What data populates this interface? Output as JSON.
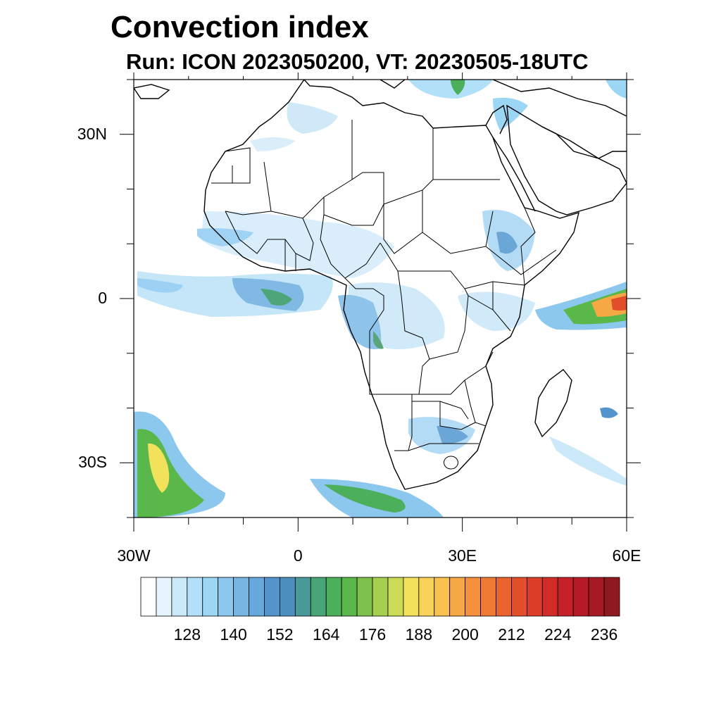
{
  "title": "Convection index",
  "subtitle": "Run: ICON 2023050200,  VT: 20230505-18UTC",
  "axes": {
    "lon_labels": [
      "30W",
      "0",
      "30E",
      "60E"
    ],
    "lon_label_values": [
      -30,
      0,
      30,
      60
    ],
    "lat_labels": [
      "30N",
      "0",
      "30S"
    ],
    "lat_label_values": [
      30,
      0,
      -30
    ],
    "lon_range": [
      -30,
      60
    ],
    "lat_range": [
      -40,
      40
    ]
  },
  "colorbar": {
    "levels": [
      116,
      120,
      124,
      128,
      132,
      136,
      140,
      144,
      148,
      152,
      156,
      160,
      164,
      168,
      172,
      176,
      180,
      184,
      188,
      192,
      196,
      200,
      204,
      208,
      212,
      216,
      220,
      224,
      228,
      232,
      236,
      240
    ],
    "labels": [
      "128",
      "140",
      "152",
      "164",
      "176",
      "188",
      "200",
      "212",
      "224",
      "236"
    ],
    "colors": [
      "#ffffff",
      "#e6f4fd",
      "#cce9fa",
      "#b3e0f9",
      "#9cd6f5",
      "#8cc8ee",
      "#79b5e3",
      "#67a8dc",
      "#5394cc",
      "#4b8fbf",
      "#4a9a9a",
      "#48a57a",
      "#4caf5b",
      "#5ab84a",
      "#7ec04c",
      "#a7cf4f",
      "#ccdb55",
      "#f2e15b",
      "#f9d25a",
      "#f8c150",
      "#f6a845",
      "#f5903d",
      "#f07a34",
      "#eb632e",
      "#e34f2a",
      "#dc3d27",
      "#d22c28",
      "#c42128",
      "#b61b27",
      "#a51a25",
      "#8e1a1f"
    ]
  }
}
